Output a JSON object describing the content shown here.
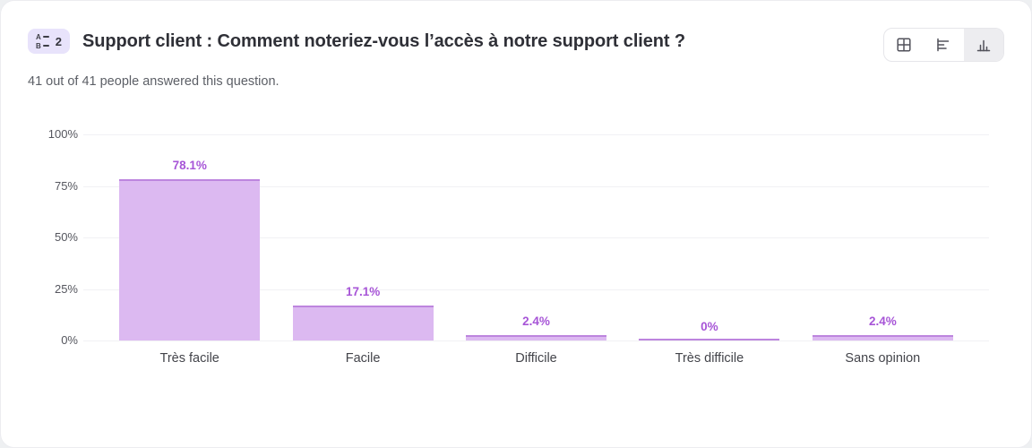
{
  "header": {
    "badge": {
      "count": "2"
    },
    "title": "Support client : Comment noteriez-vous l’accès à notre support client ?",
    "subtitle": "41 out of 41 people answered this question."
  },
  "view_toggle": {
    "options": [
      {
        "id": "table-view",
        "icon": "grid-icon",
        "active": false
      },
      {
        "id": "horizontal-bar-view",
        "icon": "bar-chart-horizontal-icon",
        "active": false
      },
      {
        "id": "vertical-bar-view",
        "icon": "bar-chart-vertical-icon",
        "active": true
      }
    ]
  },
  "chart_data": {
    "type": "bar",
    "title": "Support client : Comment noteriez-vous l’accès à notre support client ?",
    "categories": [
      "Très facile",
      "Facile",
      "Difficile",
      "Très difficile",
      "Sans opinion"
    ],
    "values": [
      78.1,
      17.1,
      2.4,
      0,
      2.4
    ],
    "value_labels": [
      "78.1%",
      "17.1%",
      "2.4%",
      "0%",
      "2.4%"
    ],
    "xlabel": "",
    "ylabel": "",
    "ylim": [
      0,
      100
    ],
    "y_ticks": [
      "100%",
      "75%",
      "50%",
      "25%",
      "0%"
    ],
    "grid": true,
    "legend": false,
    "colors": {
      "bar_fill": "#dcb9f1",
      "bar_border": "#bd85de",
      "value_label": "#a755d7",
      "gridline": "#f1f1f4"
    }
  }
}
